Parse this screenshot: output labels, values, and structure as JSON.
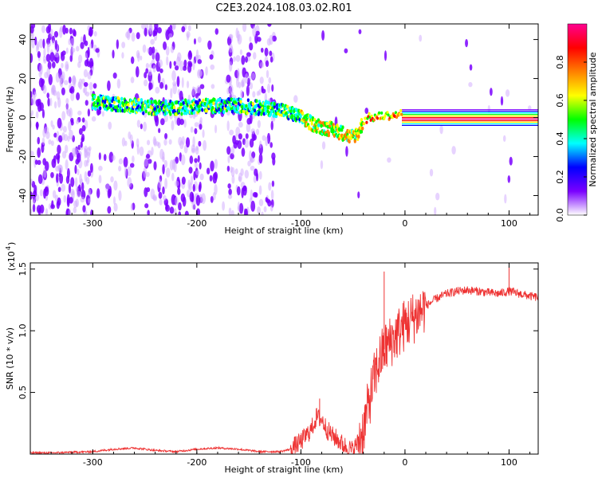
{
  "title": "C2E3.2024.108.03.02.R01",
  "chart_data": [
    {
      "type": "heatmap",
      "xlabel": "Height of straight line (km)",
      "ylabel": "Frequency (Hz)",
      "xlim": [
        -360,
        128
      ],
      "ylim": [
        -50,
        48
      ],
      "x_ticks": [
        -300,
        -200,
        -100,
        0,
        100
      ],
      "x_tick_labels": [
        "-300",
        "-200",
        "-100",
        "0",
        "100"
      ],
      "y_ticks": [
        -40,
        -20,
        0,
        20,
        40
      ],
      "y_tick_labels": [
        "-40",
        "-20",
        "0",
        "20",
        "40"
      ],
      "colorbar": {
        "label": "Normalized spectral amplitude",
        "range": [
          0,
          1
        ],
        "ticks": [
          0.0,
          0.2,
          0.4,
          0.6,
          0.8
        ],
        "tick_labels": [
          "0.0",
          "0.2",
          "0.4",
          "0.6",
          "0.8"
        ],
        "colors": [
          "#ffffff",
          "#7a00ff",
          "#0000ff",
          "#00ffff",
          "#00ff00",
          "#ffff00",
          "#ff8000",
          "#ff0000",
          "#ff0090"
        ]
      },
      "ridge": {
        "x": [
          -300,
          -280,
          -260,
          -240,
          -220,
          -200,
          -180,
          -160,
          -140,
          -120,
          -100,
          -90,
          -80,
          -70,
          -60,
          -52,
          -45,
          -40,
          -35,
          -30,
          -20,
          -10,
          -5,
          0,
          50,
          100,
          128
        ],
        "y": [
          8,
          7,
          6,
          5,
          5,
          6,
          6,
          6,
          5,
          4,
          0,
          -3,
          -5,
          -6,
          -8,
          -10,
          -8,
          -2,
          0,
          0,
          1,
          1,
          2,
          2,
          2,
          2,
          2
        ]
      },
      "grid": false
    },
    {
      "type": "line",
      "xlabel": "Height of straight line (km)",
      "ylabel": "SNR (10 * v/v)",
      "y_scale_note": "(x10",
      "y_scale_exp": "4",
      "xlim": [
        -360,
        128
      ],
      "ylim": [
        0,
        1.55
      ],
      "x_ticks": [
        -300,
        -200,
        -100,
        0,
        100
      ],
      "x_tick_labels": [
        "-300",
        "-200",
        "-100",
        "0",
        "100"
      ],
      "y_ticks": [
        0.5,
        1.0,
        1.5
      ],
      "y_tick_labels": [
        "0.5",
        "1.0",
        "1.5"
      ],
      "series": [
        {
          "color": "#ee3333",
          "x": [
            -360,
            -340,
            -320,
            -300,
            -280,
            -260,
            -240,
            -220,
            -200,
            -180,
            -160,
            -140,
            -120,
            -110,
            -100,
            -90,
            -85,
            -80,
            -75,
            -70,
            -65,
            -60,
            -55,
            -50,
            -45,
            -40,
            -35,
            -30,
            -25,
            -20,
            -15,
            -10,
            -5,
            0,
            10,
            20,
            30,
            40,
            50,
            60,
            70,
            80,
            90,
            100,
            110,
            120,
            128
          ],
          "y": [
            0.01,
            0.01,
            0.015,
            0.02,
            0.04,
            0.05,
            0.03,
            0.02,
            0.04,
            0.05,
            0.04,
            0.02,
            0.02,
            0.04,
            0.1,
            0.2,
            0.3,
            0.28,
            0.2,
            0.15,
            0.12,
            0.08,
            0.05,
            0.03,
            0.1,
            0.2,
            0.4,
            0.6,
            0.75,
            0.85,
            0.9,
            0.95,
            1.0,
            1.05,
            1.12,
            1.2,
            1.26,
            1.3,
            1.32,
            1.33,
            1.32,
            1.31,
            1.3,
            1.32,
            1.3,
            1.28,
            1.27
          ]
        }
      ],
      "annotations": [
        {
          "x": -82,
          "y": 0.45
        },
        {
          "x": -20,
          "y": 1.48
        },
        {
          "x": 100,
          "y": 1.52
        }
      ],
      "grid": false
    }
  ]
}
